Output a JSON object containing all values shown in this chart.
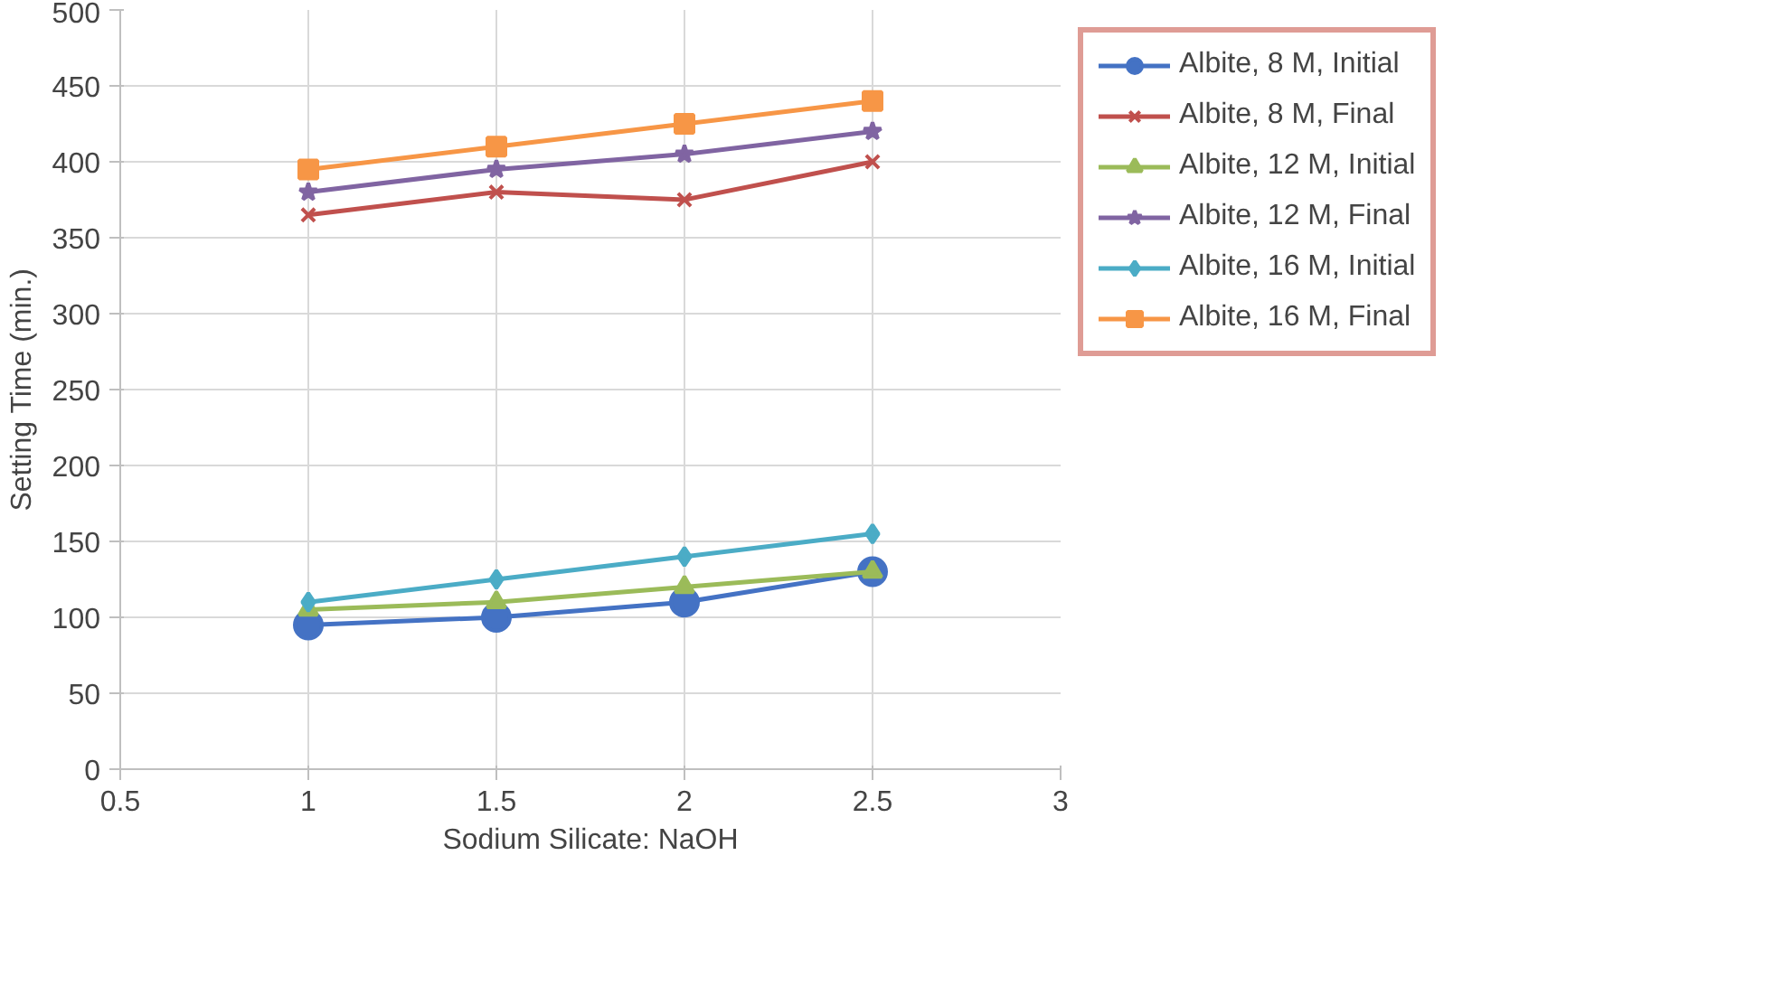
{
  "chart_data": {
    "type": "line",
    "xlabel": "Sodium Silicate: NaOH",
    "ylabel": "Setting Time (min.)",
    "x": [
      1,
      1.5,
      2,
      2.5
    ],
    "xlim": [
      0.5,
      3
    ],
    "xticks": [
      0.5,
      1,
      1.5,
      2,
      2.5,
      3
    ],
    "ylim": [
      0,
      500
    ],
    "yticks": [
      0,
      50,
      100,
      150,
      200,
      250,
      300,
      350,
      400,
      450,
      500
    ],
    "grid": true,
    "legend": "right",
    "line_style": "solid",
    "series": [
      {
        "name": "Albite, 8 M, Initial",
        "color": "#4472c4",
        "marker": "circle",
        "values": [
          95,
          100,
          110,
          130
        ]
      },
      {
        "name": "Albite, 8 M, Final",
        "color": "#c0504d",
        "marker": "cross",
        "values": [
          365,
          380,
          375,
          400
        ]
      },
      {
        "name": "Albite, 12 M, Initial",
        "color": "#9bbb59",
        "marker": "triangle",
        "values": [
          105,
          110,
          120,
          130
        ]
      },
      {
        "name": "Albite, 12 M, Final",
        "color": "#8064a2",
        "marker": "star",
        "values": [
          380,
          395,
          405,
          420
        ]
      },
      {
        "name": "Albite, 16 M, Initial",
        "color": "#4bacc6",
        "marker": "diamond",
        "values": [
          110,
          125,
          140,
          155
        ]
      },
      {
        "name": "Albite, 16 M, Final",
        "color": "#f79646",
        "marker": "square",
        "values": [
          395,
          410,
          425,
          440
        ]
      }
    ]
  }
}
